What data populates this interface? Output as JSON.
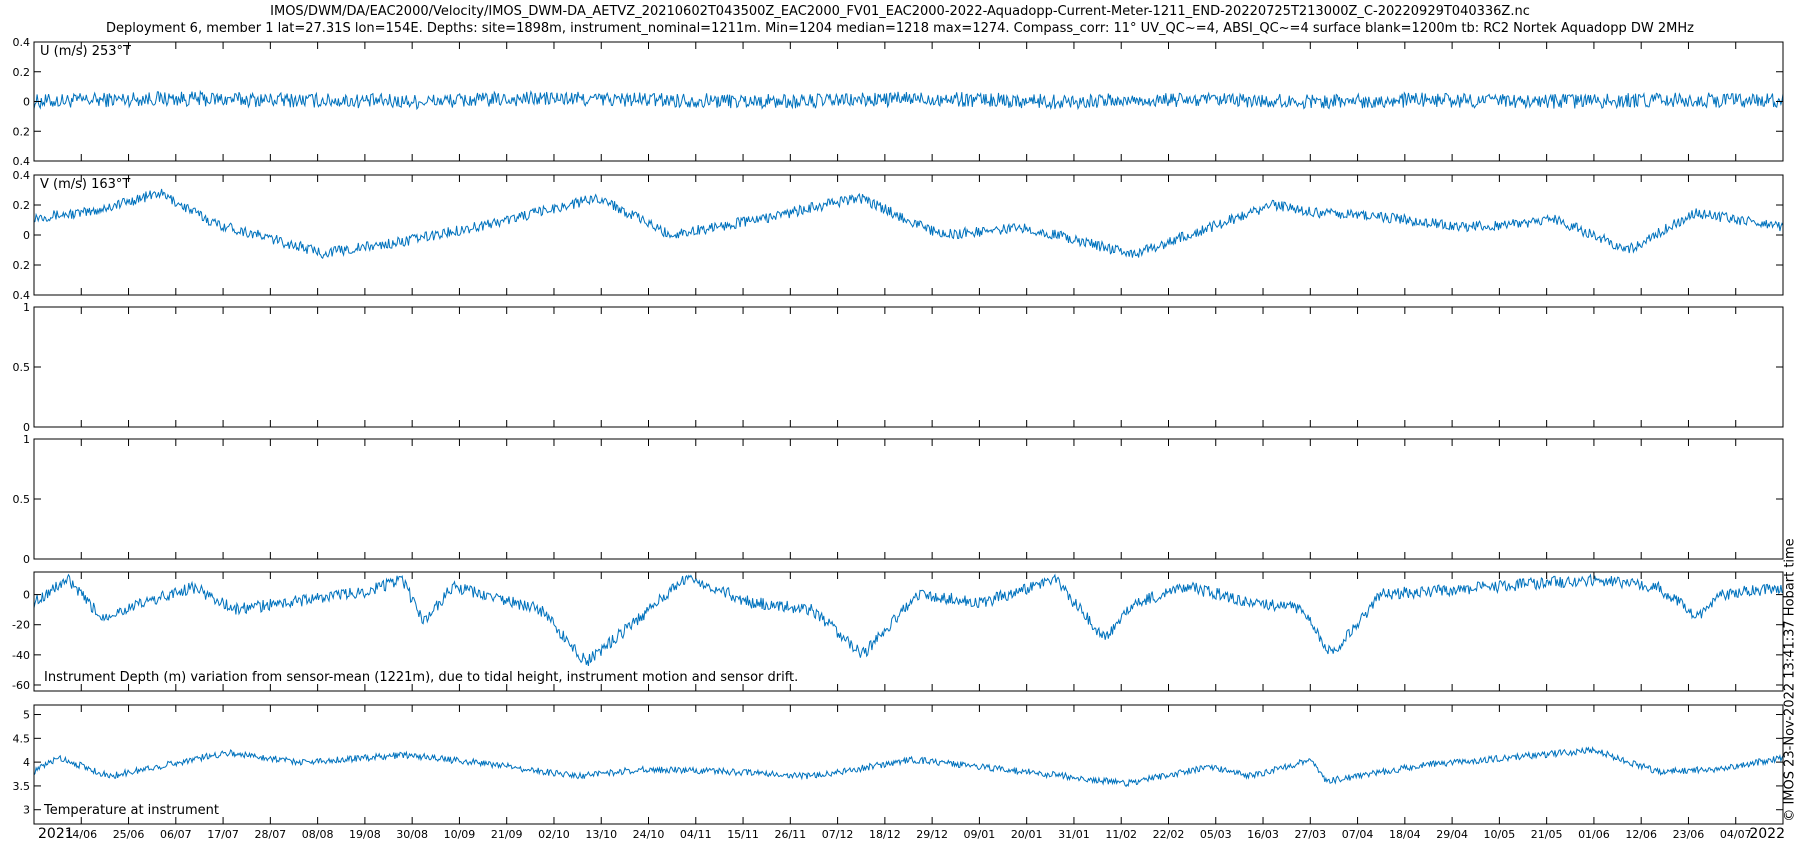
{
  "title_line1": "IMOS/DWM/DA/EAC2000/Velocity/IMOS_DWM-DA_AETVZ_20210602T043500Z_EAC2000_FV01_EAC2000-2022-Aquadopp-Current-Meter-1211_END-20220725T213000Z_C-20220929T040336Z.nc",
  "title_line2": "Deployment 6, member 1 lat=27.31S lon=154E. Depths: site=1898m, instrument_nominal=1211m. Min=1204 median=1218 max=1274. Compass_corr: 11° UV_QC~=4, ABSI_QC~=4 surface blank=1200m tb: RC2 Nortek Aquadopp DW 2MHz",
  "timestamp": "© IMOS 23-Nov-2022 13:41:37 Hobart time",
  "colors": {
    "series": "#0072BD",
    "axes": "#000000",
    "background": "#ffffff"
  },
  "chart_data": {
    "type": "line",
    "x_range": [
      "2021-06-02",
      "2022-07-25"
    ],
    "x_ticks": [
      "14/06",
      "25/06",
      "06/07",
      "17/07",
      "28/07",
      "08/08",
      "19/08",
      "30/08",
      "10/09",
      "21/09",
      "02/10",
      "13/10",
      "24/10",
      "04/11",
      "15/11",
      "26/11",
      "07/12",
      "18/12",
      "29/12",
      "09/01",
      "20/01",
      "31/01",
      "11/02",
      "22/02",
      "05/03",
      "16/03",
      "27/03",
      "07/04",
      "18/04",
      "29/04",
      "10/05",
      "21/05",
      "01/06",
      "12/06",
      "23/06",
      "04/07"
    ],
    "x_year_labels": [
      "2021",
      "2022"
    ],
    "panels": [
      {
        "label": "U (m/s) 253°T",
        "ylim": [
          -0.4,
          0.4
        ],
        "yticks": [
          -0.4,
          -0.2,
          0,
          0.2,
          0.4
        ],
        "ytick_labels": [
          "0.4",
          "0.2",
          "0",
          "0.2",
          "0.4"
        ],
        "series": [
          {
            "x": [
              "2021-06-02",
              "2021-07-01",
              "2021-08-01",
              "2021-09-01",
              "2021-10-01",
              "2021-11-01",
              "2021-12-01",
              "2022-01-01",
              "2022-02-01",
              "2022-03-01",
              "2022-04-01",
              "2022-05-01",
              "2022-06-01",
              "2022-07-01",
              "2022-07-25"
            ],
            "y": [
              0.0,
              0.02,
              0.01,
              0.0,
              0.02,
              0.01,
              0.0,
              0.02,
              0.0,
              0.01,
              0.0,
              0.01,
              0.0,
              0.01,
              0.01
            ]
          }
        ]
      },
      {
        "label": "V (m/s) 163°T",
        "ylim": [
          -0.4,
          0.4
        ],
        "yticks": [
          -0.4,
          -0.2,
          0,
          0.2,
          0.4
        ],
        "ytick_labels": [
          "0.4",
          "0.2",
          "0",
          "0.2",
          "0.4"
        ],
        "series": [
          {
            "x": [
              "2021-06-02",
              "2021-06-15",
              "2021-07-02",
              "2021-07-15",
              "2021-08-10",
              "2021-08-28",
              "2021-09-20",
              "2021-10-15",
              "2021-11-01",
              "2021-11-25",
              "2021-12-16",
              "2022-01-05",
              "2022-01-25",
              "2022-02-20",
              "2022-03-10",
              "2022-03-25",
              "2022-04-05",
              "2022-04-20",
              "2022-05-10",
              "2022-06-01",
              "2022-06-18",
              "2022-07-04",
              "2022-07-25"
            ],
            "y": [
              0.12,
              0.15,
              0.28,
              0.08,
              -0.12,
              -0.05,
              0.08,
              0.25,
              0.0,
              0.12,
              0.25,
              0.0,
              0.05,
              -0.13,
              0.05,
              0.2,
              0.15,
              0.12,
              0.05,
              0.1,
              -0.1,
              0.15,
              0.05
            ]
          }
        ]
      },
      {
        "label": "",
        "ylim": [
          0,
          1
        ],
        "yticks": [
          0,
          0.5,
          1
        ],
        "ytick_labels": [
          "0",
          "0.5",
          "1"
        ],
        "series": []
      },
      {
        "label": "",
        "ylim": [
          0,
          1
        ],
        "yticks": [
          0,
          0.5,
          1
        ],
        "ytick_labels": [
          "0",
          "0.5",
          "1"
        ],
        "series": []
      },
      {
        "label": "Instrument Depth (m) variation from sensor-mean (1221m), due to tidal height, instrument motion and sensor drift.",
        "ylim": [
          -64,
          15
        ],
        "yticks": [
          -60,
          -40,
          -20,
          0
        ],
        "ytick_labels": [
          "-60",
          "-40",
          "-20",
          "0"
        ],
        "series": [
          {
            "x": [
              "2021-06-02",
              "2021-06-10",
              "2021-06-18",
              "2021-07-10",
              "2021-07-20",
              "2021-08-20",
              "2021-08-29",
              "2021-09-03",
              "2021-09-10",
              "2021-10-01",
              "2021-10-12",
              "2021-10-25",
              "2021-11-05",
              "2021-11-20",
              "2021-12-05",
              "2021-12-17",
              "2021-12-30",
              "2022-01-15",
              "2022-02-01",
              "2022-02-13",
              "2022-02-20",
              "2022-03-05",
              "2022-03-20",
              "2022-04-01",
              "2022-04-08",
              "2022-04-20",
              "2022-05-15",
              "2022-06-10",
              "2022-06-25",
              "2022-07-05",
              "2022-07-10",
              "2022-07-25"
            ],
            "y": [
              -5,
              10,
              -15,
              5,
              -10,
              2,
              10,
              -18,
              5,
              -10,
              -45,
              -15,
              12,
              -5,
              -10,
              -40,
              0,
              -5,
              10,
              -30,
              -5,
              5,
              -5,
              -10,
              -40,
              0,
              5,
              10,
              5,
              -15,
              0,
              5
            ]
          }
        ]
      },
      {
        "label": "Temperature at instrument",
        "ylim": [
          2.7,
          5.2
        ],
        "yticks": [
          3,
          3.5,
          4,
          4.5,
          5
        ],
        "ytick_labels": [
          "3",
          "3.5",
          "4",
          "4.5",
          "5"
        ],
        "series": [
          {
            "x": [
              "2021-06-02",
              "2021-06-08",
              "2021-06-20",
              "2021-07-18",
              "2021-08-05",
              "2021-08-30",
              "2021-09-20",
              "2021-10-10",
              "2021-10-25",
              "2021-11-15",
              "2021-12-05",
              "2021-12-29",
              "2022-01-25",
              "2022-02-18",
              "2022-03-10",
              "2022-03-20",
              "2022-04-03",
              "2022-04-07",
              "2022-05-01",
              "2022-05-21",
              "2022-06-10",
              "2022-06-25",
              "2022-07-10",
              "2022-07-25"
            ],
            "y": [
              3.8,
              4.1,
              3.7,
              4.2,
              4.0,
              4.15,
              3.95,
              3.7,
              3.85,
              3.8,
              3.7,
              4.05,
              3.8,
              3.55,
              3.9,
              3.7,
              4.05,
              3.6,
              3.95,
              4.1,
              4.25,
              3.8,
              3.85,
              4.1
            ]
          }
        ]
      }
    ]
  }
}
